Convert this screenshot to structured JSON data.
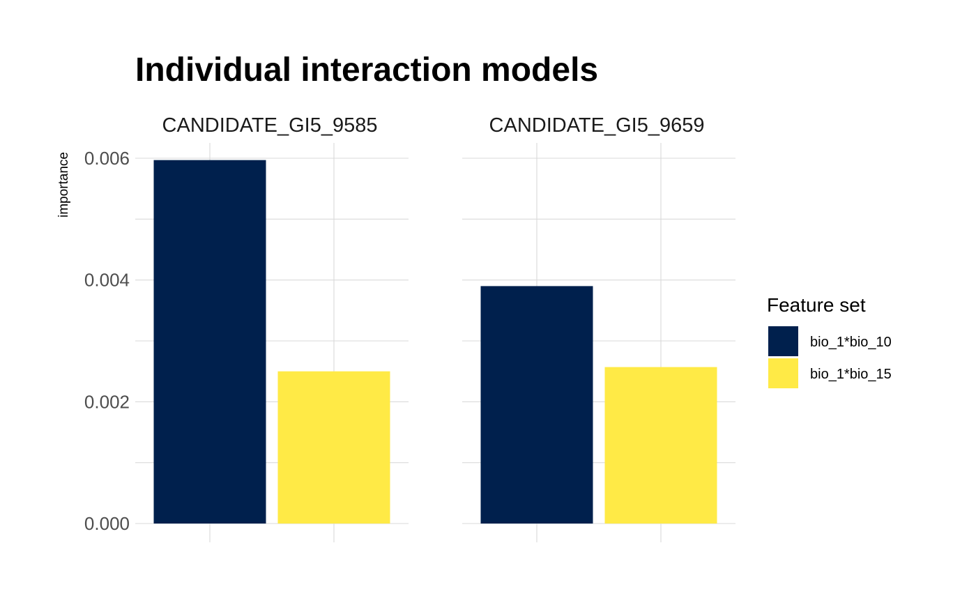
{
  "chart_data": {
    "type": "bar",
    "title": "Individual interaction models",
    "ylabel": "importance",
    "xlabel": "",
    "ylim": [
      0,
      0.006
    ],
    "yticks": [
      "0.000",
      "0.002",
      "0.004",
      "0.006"
    ],
    "grid": true,
    "legend": {
      "title": "Feature set",
      "position": "right",
      "entries": [
        "bio_1*bio_10",
        "bio_1*bio_15"
      ]
    },
    "colors": {
      "bio_1*bio_10": "#00204D",
      "bio_1*bio_15": "#FFEA46"
    },
    "facets": [
      {
        "name": "CANDIDATE_GI5_9585",
        "values": [
          0.00597,
          0.0025
        ]
      },
      {
        "name": "CANDIDATE_GI5_9659",
        "values": [
          0.0039,
          0.00257
        ]
      }
    ]
  }
}
